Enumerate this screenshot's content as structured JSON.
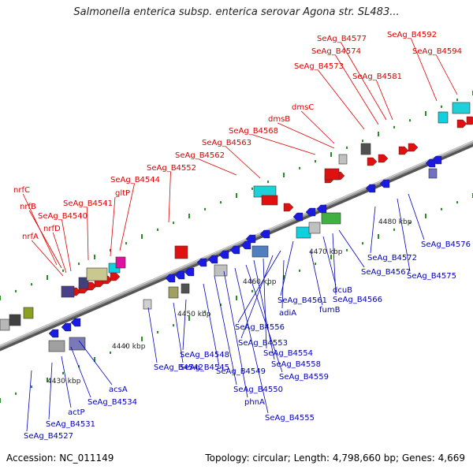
{
  "title": "Salmonella enterica subsp. enterica serovar Agona str. SL483...",
  "footer": {
    "accession": "Accession: NC_011149",
    "summary": "Topology: circular; Length: 4,798,660 bp; Genes: 4,669"
  },
  "colors": {
    "forward_label": "#dd0000",
    "reverse_label": "#0000bb",
    "backbone": "#9a9a9a",
    "tick": "#2a8a2a"
  },
  "scale_labels": [
    "4430 kbp",
    "4440 kbp",
    "4450 kbp",
    "4460 kbp",
    "4470 kbp",
    "4480 kbp"
  ],
  "forward_labels": [
    "nrfA",
    "nrfD",
    "SeAg_B4540",
    "nrfB",
    "nrfC",
    "SeAg_B4541",
    "gltP",
    "SeAg_B4544",
    "SeAg_B4552",
    "SeAg_B4562",
    "SeAg_B4563",
    "SeAg_B4568",
    "dmsB",
    "dmsC",
    "SeAg_B4573",
    "SeAg_B4574",
    "SeAg_B4577",
    "SeAg_B4581",
    "SeAg_B4592",
    "SeAg_B4594"
  ],
  "reverse_labels": [
    "SeAg_B4527",
    "SeAg_B4531",
    "actP",
    "SeAg_B4534",
    "acsA",
    "SeAg_B4542",
    "SeAg_B4545",
    "SeAg_B4548",
    "SeAg_B4549",
    "SeAg_B4550",
    "phnA",
    "SeAg_B4555",
    "SeAg_B4559",
    "SeAg_B4558",
    "SeAg_B4554",
    "SeAg_B4553",
    "SeAg_B4556",
    "adiA",
    "SeAg_B4561",
    "fumB",
    "dcuB",
    "SeAg_B4566",
    "SeAg_B4567",
    "SeAg_B4572",
    "SeAg_B4575",
    "SeAg_B4576"
  ]
}
